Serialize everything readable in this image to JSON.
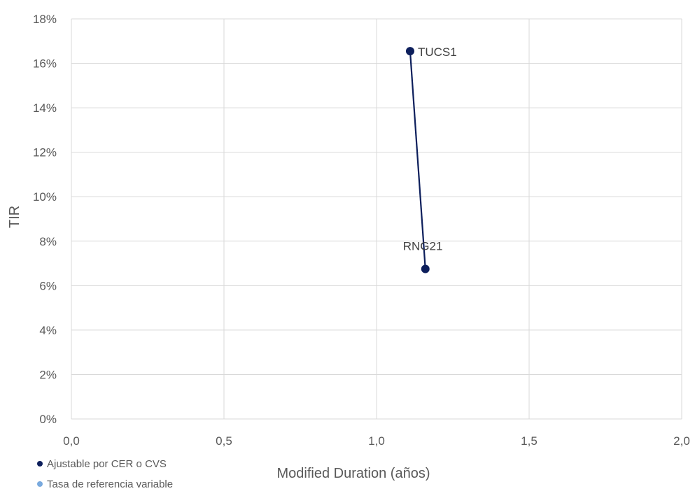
{
  "chart_data": {
    "type": "scatter",
    "title": "",
    "xlabel": "Modified Duration (años)",
    "ylabel": "TIR",
    "xlim": [
      0,
      2
    ],
    "ylim": [
      0,
      18
    ],
    "x_ticks": [
      "0,0",
      "0,5",
      "1,0",
      "1,5",
      "2,0"
    ],
    "y_ticks": [
      "0%",
      "2%",
      "4%",
      "6%",
      "8%",
      "10%",
      "12%",
      "14%",
      "16%",
      "18%"
    ],
    "grid": true,
    "legend_position": "bottom-left",
    "series": [
      {
        "name": "Ajustable por CER o CVS",
        "color": "#0d1f5c",
        "connected": true,
        "points": [
          {
            "x": 1.11,
            "y": 16.55,
            "label": "TUCS1"
          },
          {
            "x": 1.16,
            "y": 6.75,
            "label": "RNG21"
          }
        ]
      },
      {
        "name": "Tasa de referencia variable",
        "color": "#7aaade",
        "connected": false,
        "points": []
      }
    ]
  }
}
